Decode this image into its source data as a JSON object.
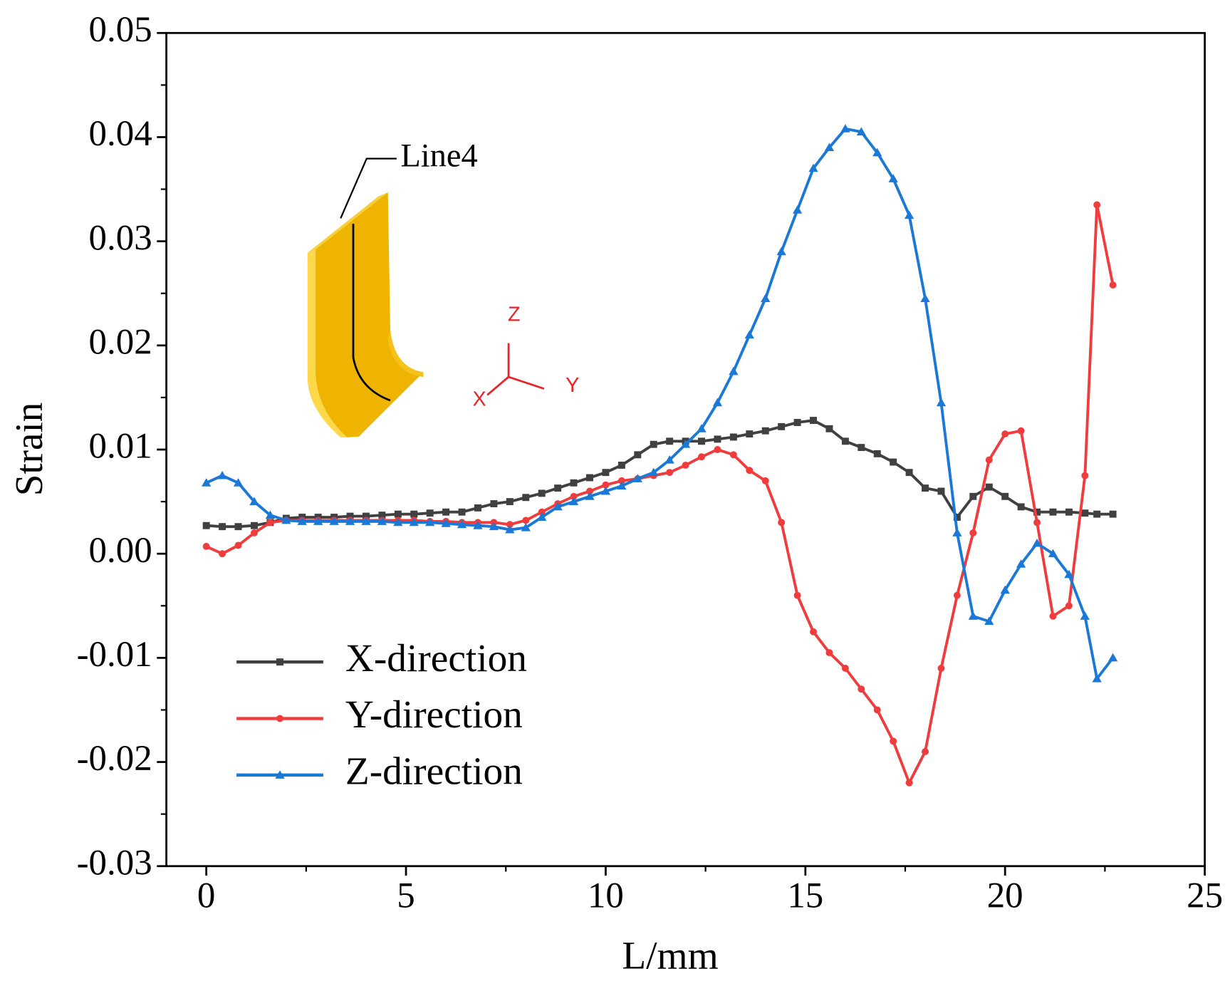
{
  "chart_data": {
    "type": "line",
    "x_label": "L/mm",
    "y_label": "Strain",
    "annotations": {
      "line_label": "Line4",
      "axis_z": "Z",
      "axis_y": "Y",
      "axis_x": "X"
    },
    "x": [
      0,
      0.4,
      0.8,
      1.2,
      1.6,
      2,
      2.4,
      2.8,
      3.2,
      3.6,
      4,
      4.4,
      4.8,
      5.2,
      5.6,
      6,
      6.4,
      6.8,
      7.2,
      7.6,
      8,
      8.4,
      8.8,
      9.2,
      9.6,
      10,
      10.4,
      10.8,
      11.2,
      11.6,
      12,
      12.4,
      12.8,
      13.2,
      13.6,
      14,
      14.4,
      14.8,
      15.2,
      15.6,
      16,
      16.4,
      16.8,
      17.2,
      17.6,
      18,
      18.4,
      18.8,
      19.2,
      19.6,
      20,
      20.4,
      20.8,
      21.2,
      21.6,
      22,
      22.3,
      22.7
    ],
    "series": [
      {
        "name": "X-direction",
        "color": "#404040",
        "marker": "square",
        "values": [
          0.0027,
          0.0026,
          0.0026,
          0.0027,
          0.003,
          0.0034,
          0.0035,
          0.0035,
          0.0035,
          0.0036,
          0.0036,
          0.0037,
          0.0038,
          0.0038,
          0.0039,
          0.004,
          0.004,
          0.0044,
          0.0048,
          0.005,
          0.0054,
          0.0058,
          0.0063,
          0.0068,
          0.0073,
          0.0078,
          0.0085,
          0.0095,
          0.0105,
          0.0108,
          0.0108,
          0.0108,
          0.011,
          0.0112,
          0.0115,
          0.0118,
          0.0122,
          0.0126,
          0.0128,
          0.012,
          0.0108,
          0.0102,
          0.0096,
          0.0088,
          0.0078,
          0.0063,
          0.006,
          0.0035,
          0.0055,
          0.0064,
          0.0055,
          0.0045,
          0.004,
          0.004,
          0.004,
          0.0039,
          0.0038,
          0.0038
        ]
      },
      {
        "name": "Y-direction",
        "color": "#f03c3c",
        "marker": "circle",
        "values": [
          0.0007,
          0.0,
          0.0008,
          0.002,
          0.003,
          0.0032,
          0.0032,
          0.0032,
          0.0032,
          0.0032,
          0.0032,
          0.0032,
          0.0032,
          0.0032,
          0.0031,
          0.0031,
          0.003,
          0.003,
          0.003,
          0.0028,
          0.0032,
          0.004,
          0.0048,
          0.0055,
          0.006,
          0.0066,
          0.007,
          0.0072,
          0.0075,
          0.0078,
          0.0085,
          0.0093,
          0.01,
          0.0095,
          0.008,
          0.007,
          0.003,
          -0.004,
          -0.0075,
          -0.0095,
          -0.011,
          -0.013,
          -0.015,
          -0.018,
          -0.022,
          -0.019,
          -0.011,
          -0.004,
          0.002,
          0.009,
          0.0115,
          0.0118,
          0.003,
          -0.006,
          -0.005,
          0.0075,
          0.0335,
          0.0258
        ]
      },
      {
        "name": "Z-direction",
        "color": "#1a78d6",
        "marker": "triangle",
        "values": [
          0.0068,
          0.0075,
          0.0068,
          0.005,
          0.0037,
          0.0032,
          0.0031,
          0.0031,
          0.0031,
          0.0031,
          0.0031,
          0.0031,
          0.003,
          0.003,
          0.003,
          0.0029,
          0.0028,
          0.0027,
          0.0026,
          0.0023,
          0.0025,
          0.0035,
          0.0045,
          0.005,
          0.0055,
          0.006,
          0.0065,
          0.0072,
          0.0078,
          0.009,
          0.0105,
          0.012,
          0.0145,
          0.0175,
          0.021,
          0.0245,
          0.029,
          0.033,
          0.037,
          0.039,
          0.0408,
          0.0405,
          0.0385,
          0.036,
          0.0325,
          0.0245,
          0.0145,
          0.002,
          -0.006,
          -0.0065,
          -0.0035,
          -0.001,
          0.001,
          0.0,
          -0.002,
          -0.006,
          -0.012,
          -0.01
        ]
      }
    ],
    "xlim": [
      -1,
      25
    ],
    "xticks": [
      0,
      5,
      10,
      15,
      20,
      25
    ],
    "ylim": [
      -0.03,
      0.05
    ],
    "yticks": [
      -0.03,
      -0.02,
      -0.01,
      {
        "value": 0,
        "label": "0.00"
      },
      0.01,
      0.02,
      0.03,
      0.04,
      0.05
    ],
    "grid": false,
    "legend": "lower left"
  }
}
